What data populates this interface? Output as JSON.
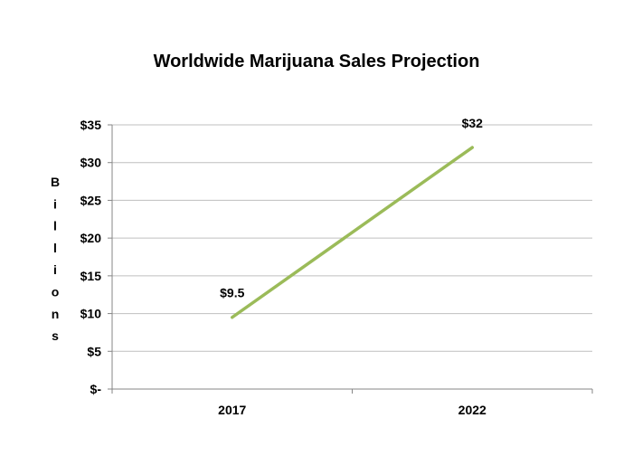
{
  "chart_data": {
    "type": "line",
    "title": "Worldwide Marijuana Sales Projection",
    "ylabel": "Billions",
    "xlabel": "",
    "categories": [
      "2017",
      "2022"
    ],
    "series": [
      {
        "values": [
          9.5,
          32
        ],
        "color": "#9bbb59",
        "data_labels": [
          "$9.5",
          "$32"
        ]
      }
    ],
    "ylim": [
      0,
      35
    ],
    "yticks": [
      0,
      5,
      10,
      15,
      20,
      25,
      30,
      35
    ],
    "ytick_labels": [
      "$-",
      "$5",
      "$10",
      "$15",
      "$20",
      "$25",
      "$30",
      "$35"
    ],
    "grid": true,
    "legend": "none"
  }
}
